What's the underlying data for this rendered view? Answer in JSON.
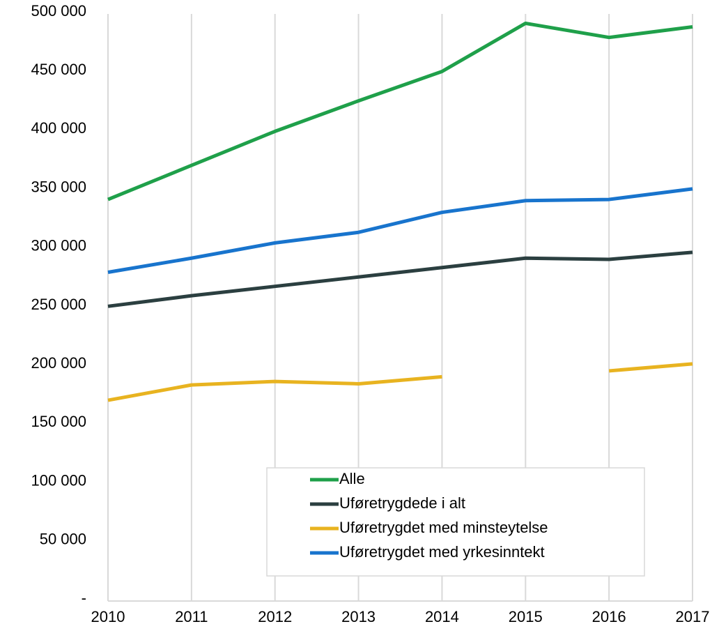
{
  "chart_data": {
    "type": "line",
    "categories": [
      "2010",
      "2011",
      "2012",
      "2013",
      "2014",
      "2015",
      "2016",
      "2017"
    ],
    "series": [
      {
        "name": "Alle",
        "color": "#1fa04a",
        "values": [
          342000,
          371000,
          400000,
          426000,
          451000,
          492000,
          480000,
          489000
        ]
      },
      {
        "name": "Uføretrygdede i alt",
        "color": "#2b3f40",
        "values": [
          251000,
          260000,
          268000,
          276000,
          284000,
          292000,
          291000,
          297000
        ]
      },
      {
        "name": "Uføretrygdet med minsteytelse",
        "color": "#e8b320",
        "values": [
          171000,
          184000,
          187000,
          185000,
          191000,
          null,
          196000,
          202000
        ]
      },
      {
        "name": "Uføretrygdet med yrkesinntekt",
        "color": "#1874cd",
        "values": [
          280000,
          292000,
          305000,
          314000,
          331000,
          341000,
          342000,
          351000
        ]
      }
    ],
    "ylim": [
      0,
      500000
    ],
    "yticks": [
      {
        "value": 0,
        "label": "-"
      },
      {
        "value": 50000,
        "label": "50 000"
      },
      {
        "value": 100000,
        "label": "100 000"
      },
      {
        "value": 150000,
        "label": "150 000"
      },
      {
        "value": 200000,
        "label": "200 000"
      },
      {
        "value": 250000,
        "label": "250 000"
      },
      {
        "value": 300000,
        "label": "300 000"
      },
      {
        "value": 350000,
        "label": "350 000"
      },
      {
        "value": 400000,
        "label": "400 000"
      },
      {
        "value": 450000,
        "label": "450 000"
      },
      {
        "value": 500000,
        "label": "500 000"
      }
    ],
    "grid": true,
    "legend": "bottom"
  }
}
